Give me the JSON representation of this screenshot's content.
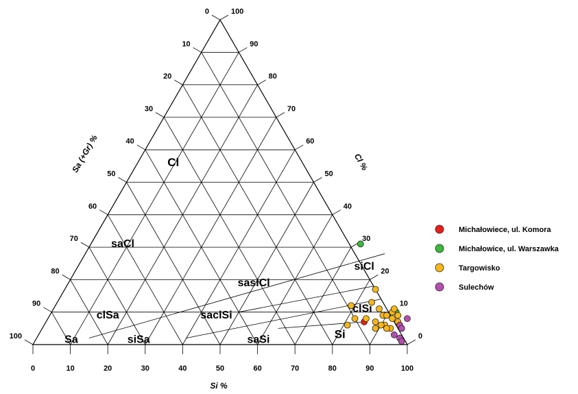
{
  "chart_data": {
    "type": "scatter",
    "subtype": "ternary",
    "title": "",
    "axes": {
      "bottom": {
        "label": "Si %",
        "ticks": [
          "0",
          "10",
          "20",
          "30",
          "40",
          "50",
          "60",
          "70",
          "80",
          "90",
          "100"
        ]
      },
      "left": {
        "label": "Sa (+Gr) %",
        "ticks": [
          "0",
          "10",
          "20",
          "30",
          "40",
          "50",
          "60",
          "70",
          "80",
          "90",
          "100"
        ]
      },
      "right": {
        "label": "Cl %",
        "ticks": [
          "100",
          "90",
          "80",
          "70",
          "60",
          "50",
          "40",
          "30",
          "20",
          "10",
          "0"
        ]
      }
    },
    "grid": true,
    "regions": [
      "Cl",
      "saCl",
      "siCl",
      "sasiCl",
      "clSi",
      "clSa",
      "saclSi",
      "Sa",
      "siSa",
      "saSi",
      "Si"
    ],
    "legend_position": "right",
    "series": [
      {
        "name": "Michałowiece, ul. Komora",
        "color": "#e8201b",
        "points": [
          [
            90,
            9
          ],
          [
            92,
            10
          ],
          [
            85,
            7
          ]
        ]
      },
      {
        "name": "Michałowice, ul. Warszawka",
        "color": "#3cb83c",
        "points": [
          [
            72,
            31
          ],
          [
            92,
            10
          ]
        ]
      },
      {
        "name": "Targowisko",
        "color": "#f7b718",
        "points": [
          [
            83,
            17
          ],
          [
            84,
            13
          ],
          [
            87,
            11
          ],
          [
            85,
            8
          ],
          [
            88,
            7
          ],
          [
            89,
            9
          ],
          [
            90,
            9
          ],
          [
            91,
            10
          ],
          [
            91,
            11
          ],
          [
            93,
            9
          ],
          [
            92,
            8
          ],
          [
            94,
            7
          ],
          [
            91,
            6
          ],
          [
            90,
            6
          ],
          [
            93,
            5
          ],
          [
            92,
            5
          ],
          [
            82,
            8
          ],
          [
            79,
            12
          ],
          [
            81,
            6
          ],
          [
            89,
            5
          ]
        ]
      },
      {
        "name": "Sulechów",
        "color": "#b54fae",
        "points": [
          [
            95,
            6
          ],
          [
            96,
            5
          ],
          [
            95,
            3
          ],
          [
            97,
            2
          ],
          [
            98,
            1
          ],
          [
            96,
            8
          ]
        ]
      }
    ]
  }
}
